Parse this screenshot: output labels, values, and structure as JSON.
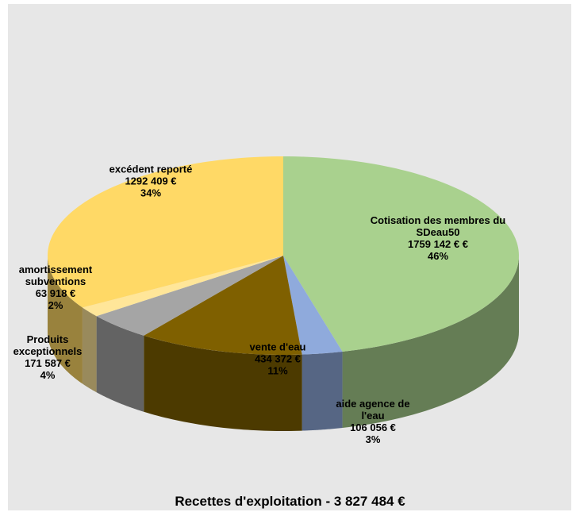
{
  "chart_data": {
    "type": "pie3d",
    "title": "Recettes d'exploitation - 3 827 484 €",
    "categories": [
      "Cotisation des membres du SDeau50",
      "aide agence de l'eau",
      "vente d'eau",
      "Produits exceptionnels",
      "amortissement subventions",
      "excédent reporté"
    ],
    "values": [
      1759142,
      106056,
      434372,
      171587,
      63918,
      1292409
    ],
    "value_labels": [
      "1759 142 €  €",
      "106 056 €",
      "434 372 €",
      "171 587 €",
      "63 918 €",
      "1292 409 €"
    ],
    "shares": [
      46,
      3,
      11,
      4,
      2,
      34
    ],
    "share_labels": [
      "46%",
      "3%",
      "11%",
      "4%",
      "2%",
      "34%"
    ],
    "colors": [
      "#a9d18e",
      "#8faadc",
      "#7f6000",
      "#a5a5a5",
      "#ffe699",
      "#ffd966"
    ]
  }
}
